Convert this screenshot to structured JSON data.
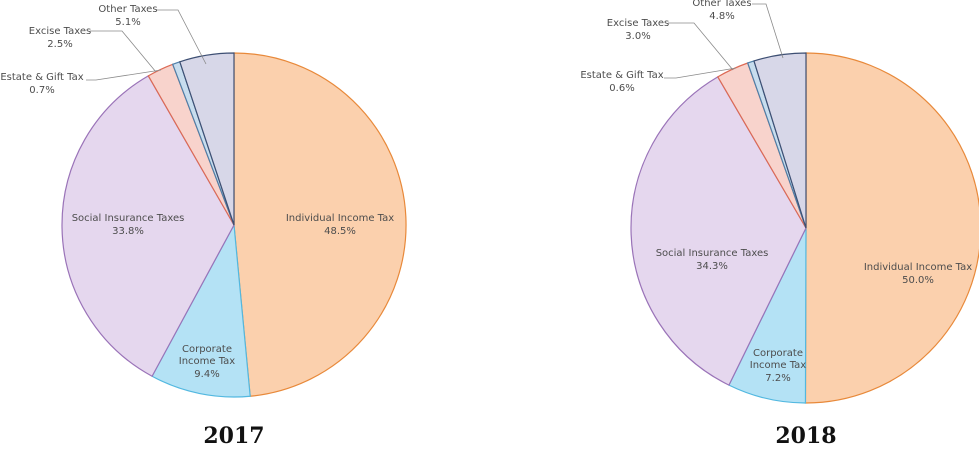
{
  "chart_data": [
    {
      "type": "pie",
      "title": "2017",
      "slices": [
        {
          "label": "Individual Income Tax",
          "pct_label": "48.5%",
          "value": 48.5,
          "fill": "#fbd0ad",
          "edge": "#e8893a"
        },
        {
          "label": "Corporate\nIncome Tax",
          "pct_label": "9.4%",
          "value": 9.4,
          "fill": "#b4e2f5",
          "edge": "#52b8e0"
        },
        {
          "label": "Social Insurance Taxes",
          "pct_label": "33.8%",
          "value": 33.8,
          "fill": "#e5d7ee",
          "edge": "#9a73b8"
        },
        {
          "label": "Excise Taxes",
          "pct_label": "2.5%",
          "value": 2.5,
          "fill": "#f8d3cc",
          "edge": "#dc6a55"
        },
        {
          "label": "Estate & Gift Tax",
          "pct_label": "0.7%",
          "value": 0.7,
          "fill": "#c8ddee",
          "edge": "#4f7fa8"
        },
        {
          "label": "Other Taxes",
          "pct_label": "5.1%",
          "value": 5.1,
          "fill": "#d7d7e8",
          "edge": "#3d4f73"
        }
      ]
    },
    {
      "type": "pie",
      "title": "2018",
      "slices": [
        {
          "label": "Individual Income Tax",
          "pct_label": "50.0%",
          "value": 50.0,
          "fill": "#fbd0ad",
          "edge": "#e8893a"
        },
        {
          "label": "Corporate\nIncome Tax",
          "pct_label": "7.2%",
          "value": 7.2,
          "fill": "#b4e2f5",
          "edge": "#52b8e0"
        },
        {
          "label": "Social Insurance Taxes",
          "pct_label": "34.3%",
          "value": 34.3,
          "fill": "#e5d7ee",
          "edge": "#9a73b8"
        },
        {
          "label": "Excise Taxes",
          "pct_label": "3.0%",
          "value": 3.0,
          "fill": "#f8d3cc",
          "edge": "#dc6a55"
        },
        {
          "label": "Estate & Gift Tax",
          "pct_label": "0.6%",
          "value": 0.6,
          "fill": "#c8ddee",
          "edge": "#4f7fa8"
        },
        {
          "label": "Other Taxes",
          "pct_label": "4.8%",
          "value": 4.8,
          "fill": "#d7d7e8",
          "edge": "#3d4f73"
        }
      ]
    }
  ]
}
